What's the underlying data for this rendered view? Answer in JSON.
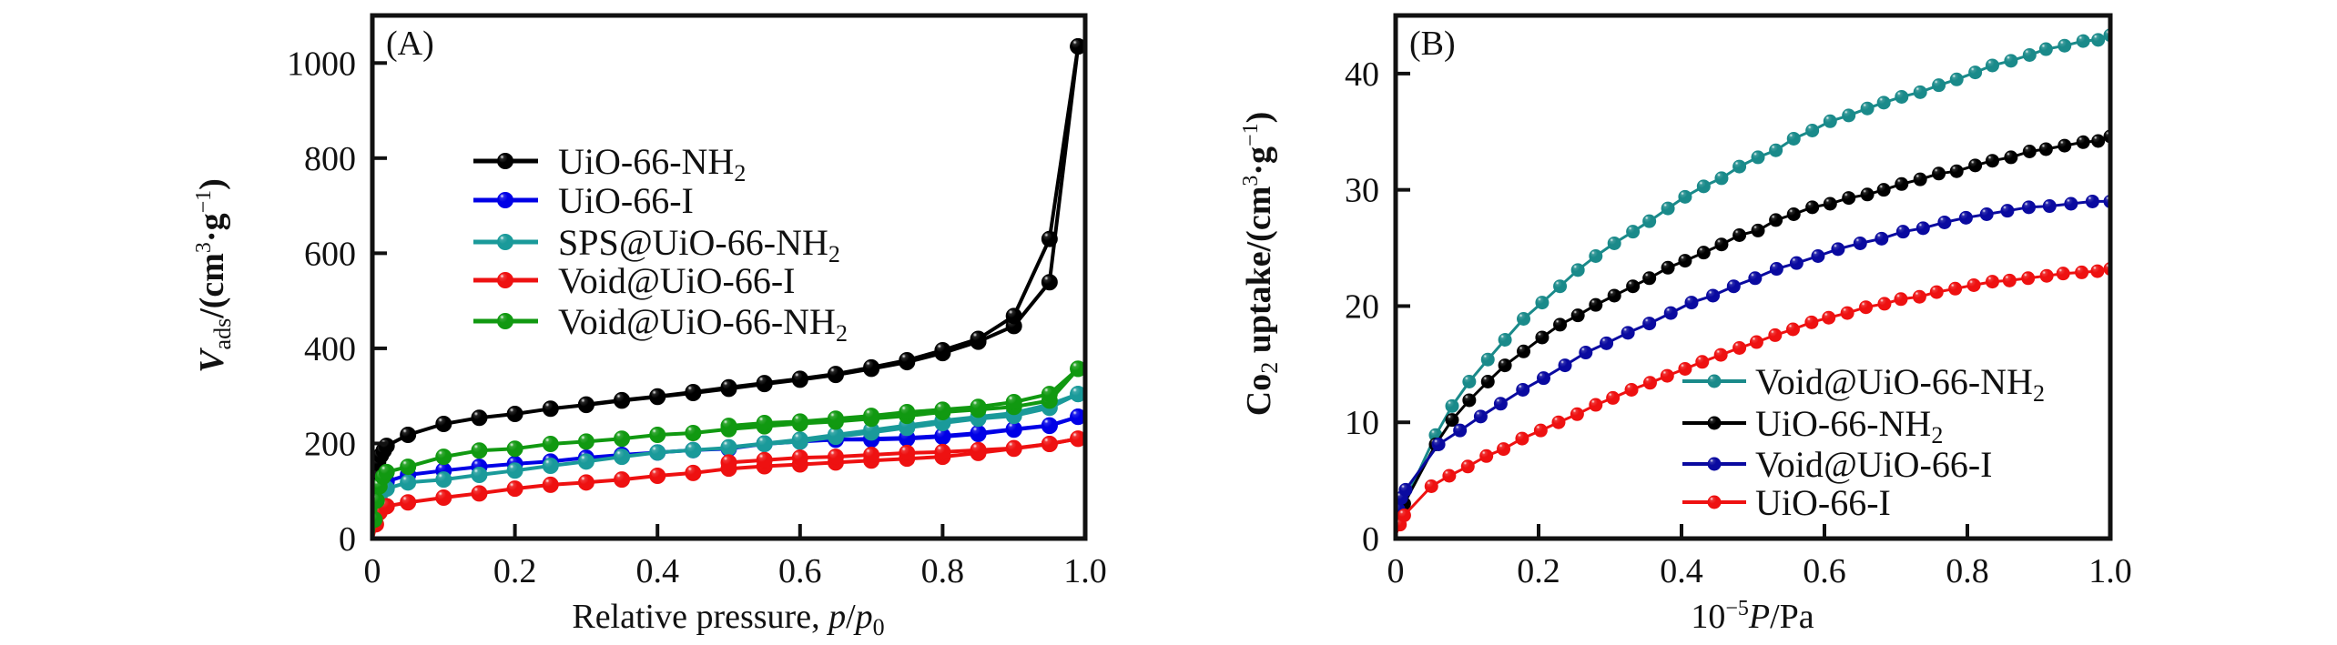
{
  "chart_data": [
    {
      "type": "line",
      "panel_label": "(A)",
      "title": "",
      "xlabel": "Relative pressure, p/p0",
      "xlabel_parts": {
        "main": "Relative pressure, ",
        "italic": "p",
        "slash": "/",
        "italic2": "p",
        "sub": "0"
      },
      "ylabel": "Vads/(cm3·g-1)",
      "ylabel_parts": {
        "italic": "V",
        "sub": "ads",
        "main": "/(cm",
        "sup1": "3",
        "dot": "·g",
        "sup2": "−1",
        "close": ")"
      },
      "xlim": [
        0,
        1.0
      ],
      "ylim": [
        0,
        1100
      ],
      "xticks": [
        0,
        0.2,
        0.4,
        0.6,
        0.8,
        1.0
      ],
      "xtick_labels": [
        "0",
        "0.2",
        "0.4",
        "0.6",
        "0.8",
        "1.0"
      ],
      "yticks": [
        0,
        200,
        400,
        600,
        800,
        1000
      ],
      "ytick_labels": [
        "0",
        "200",
        "400",
        "600",
        "800",
        "1000"
      ],
      "grid": false,
      "legend_position": "center-left",
      "legend": [
        {
          "label": "UiO-66-NH",
          "sub": "2",
          "color": "#000000"
        },
        {
          "label": "UiO-66-I",
          "sub": "",
          "color": "#0000e6"
        },
        {
          "label": "SPS@UiO-66-NH",
          "sub": "2",
          "color": "#1a9a9a"
        },
        {
          "label": "Void@UiO-66-I",
          "sub": "",
          "color": "#ee1111"
        },
        {
          "label": "Void@UiO-66-NH",
          "sub": "2",
          "color": "#119911"
        }
      ],
      "series": [
        {
          "name": "UiO-66-NH2",
          "color": "#000000",
          "adsorption": {
            "x": [
              0.0,
              0.005,
              0.008,
              0.012,
              0.016,
              0.02,
              0.05,
              0.1,
              0.15,
              0.2,
              0.25,
              0.3,
              0.35,
              0.4,
              0.45,
              0.5,
              0.55,
              0.6,
              0.65,
              0.7,
              0.75,
              0.8,
              0.85,
              0.9,
              0.95,
              0.99
            ],
            "y": [
              0,
              130,
              160,
              175,
              185,
              195,
              218,
              241,
              254,
              262,
              273,
              281,
              290,
              298,
              306,
              315,
              325,
              334,
              344,
              357,
              371,
              390,
              414,
              447,
              539,
              1035
            ]
          },
          "desorption": {
            "x": [
              0.99,
              0.95,
              0.9,
              0.85,
              0.8,
              0.75,
              0.7,
              0.65,
              0.6,
              0.55,
              0.5,
              0.45,
              0.4,
              0.35,
              0.3
            ],
            "y": [
              1035,
              630,
              468,
              420,
              396,
              375,
              360,
              346,
              336,
              327,
              318,
              308,
              299,
              291,
              282
            ]
          }
        },
        {
          "name": "UiO-66-I",
          "color": "#0000e6",
          "adsorption": {
            "x": [
              0.0,
              0.005,
              0.01,
              0.02,
              0.05,
              0.1,
              0.15,
              0.2,
              0.25,
              0.3,
              0.35,
              0.4,
              0.45,
              0.5,
              0.55,
              0.6,
              0.65,
              0.7,
              0.75,
              0.8,
              0.85,
              0.9,
              0.95,
              0.99
            ],
            "y": [
              0,
              60,
              100,
              120,
              134,
              143,
              151,
              157,
              162,
              170,
              176,
              181,
              186,
              189,
              199,
              204,
              208,
              208,
              210,
              214,
              220,
              229,
              237,
              256
            ]
          },
          "desorption": {
            "x": [
              0.99,
              0.95,
              0.9,
              0.85,
              0.8,
              0.75,
              0.7,
              0.65,
              0.6,
              0.55,
              0.5
            ],
            "y": [
              256,
              238,
              230,
              222,
              216,
              212,
              210,
              208,
              205,
              200,
              190
            ]
          }
        },
        {
          "name": "SPS@UiO-66-NH2",
          "color": "#1a9a9a",
          "adsorption": {
            "x": [
              0.0,
              0.005,
              0.01,
              0.02,
              0.05,
              0.1,
              0.15,
              0.2,
              0.25,
              0.3,
              0.35,
              0.4,
              0.45,
              0.5,
              0.55,
              0.6,
              0.65,
              0.7,
              0.75,
              0.8,
              0.85,
              0.9,
              0.95,
              0.99
            ],
            "y": [
              0,
              50,
              85,
              105,
              118,
              124,
              134,
              143,
              153,
              162,
              172,
              181,
              186,
              191,
              199,
              204,
              214,
              223,
              233,
              243,
              252,
              258,
              275,
              304
            ]
          },
          "desorption": {
            "x": [
              0.99,
              0.95,
              0.9,
              0.85,
              0.8,
              0.75,
              0.7,
              0.65,
              0.6,
              0.55,
              0.5
            ],
            "y": [
              304,
              282,
              264,
              256,
              248,
              238,
              228,
              218,
              208,
              200,
              192
            ]
          }
        },
        {
          "name": "Void@UiO-66-I",
          "color": "#ee1111",
          "adsorption": {
            "x": [
              0.0,
              0.005,
              0.01,
              0.02,
              0.05,
              0.1,
              0.15,
              0.2,
              0.25,
              0.3,
              0.35,
              0.4,
              0.45,
              0.5,
              0.55,
              0.6,
              0.65,
              0.7,
              0.75,
              0.8,
              0.85,
              0.9,
              0.95,
              0.99
            ],
            "y": [
              0,
              30,
              55,
              68,
              76,
              86,
              95,
              105,
              113,
              118,
              124,
              132,
              138,
              147,
              152,
              156,
              160,
              164,
              168,
              172,
              180,
              189,
              199,
              210
            ]
          },
          "desorption": {
            "x": [
              0.99,
              0.95,
              0.9,
              0.85,
              0.8,
              0.75,
              0.7,
              0.65,
              0.6,
              0.55,
              0.5
            ],
            "y": [
              210,
              199,
              190,
              186,
              182,
              180,
              176,
              172,
              170,
              165,
              160
            ]
          }
        },
        {
          "name": "Void@UiO-66-NH2",
          "color": "#119911",
          "adsorption": {
            "x": [
              0.0,
              0.003,
              0.006,
              0.01,
              0.015,
              0.02,
              0.05,
              0.1,
              0.15,
              0.2,
              0.25,
              0.3,
              0.35,
              0.4,
              0.45,
              0.5,
              0.55,
              0.6,
              0.65,
              0.7,
              0.75,
              0.8,
              0.85,
              0.9,
              0.95,
              0.99
            ],
            "y": [
              0,
              40,
              80,
              110,
              130,
              140,
              151,
              172,
              185,
              189,
              199,
              204,
              210,
              218,
              222,
              230,
              236,
              242,
              246,
              252,
              258,
              266,
              271,
              277,
              290,
              357
            ]
          },
          "desorption": {
            "x": [
              0.99,
              0.95,
              0.9,
              0.85,
              0.8,
              0.75,
              0.7,
              0.65,
              0.6,
              0.55,
              0.5
            ],
            "y": [
              357,
              304,
              287,
              277,
              271,
              266,
              258,
              252,
              246,
              243,
              237
            ]
          }
        }
      ]
    },
    {
      "type": "line",
      "panel_label": "(B)",
      "title": "",
      "xlabel": "10^-5 P/Pa",
      "xlabel_parts": {
        "main": "10",
        "sup": "−5",
        "italic": "P",
        "rest": "/Pa"
      },
      "ylabel": "Co2 uptake/(cm3·g-1)",
      "ylabel_parts": {
        "main": "Co",
        "sub": "2",
        "rest": " uptake/(cm",
        "sup1": "3",
        "dot": "·g",
        "sup2": "−1",
        "close": ")"
      },
      "xlim": [
        0,
        1.0
      ],
      "ylim": [
        0,
        45
      ],
      "xticks": [
        0,
        0.2,
        0.4,
        0.6,
        0.8,
        1.0
      ],
      "xtick_labels": [
        "0",
        "0.2",
        "0.4",
        "0.6",
        "0.8",
        "1.0"
      ],
      "yticks": [
        0,
        10,
        20,
        30,
        40
      ],
      "ytick_labels": [
        "0",
        "10",
        "20",
        "30",
        "40"
      ],
      "grid": false,
      "legend_position": "bottom-right",
      "legend": [
        {
          "label": "Void@UiO-66-NH",
          "sub": "2",
          "color": "#1a8a8a"
        },
        {
          "label": "UiO-66-NH",
          "sub": "2",
          "color": "#000000"
        },
        {
          "label": "Void@UiO-66-I",
          "sub": "",
          "color": "#0a0aa0"
        },
        {
          "label": "UiO-66-I",
          "sub": "",
          "color": "#ee1111"
        }
      ],
      "series": [
        {
          "name": "Void@UiO-66-NH2",
          "color": "#1a8a8a",
          "x": [
            0.0,
            0.005,
            0.01,
            0.056,
            0.079,
            0.103,
            0.129,
            0.153,
            0.179,
            0.205,
            0.23,
            0.255,
            0.28,
            0.306,
            0.332,
            0.355,
            0.381,
            0.405,
            0.431,
            0.456,
            0.481,
            0.507,
            0.532,
            0.557,
            0.583,
            0.608,
            0.634,
            0.66,
            0.683,
            0.708,
            0.734,
            0.76,
            0.785,
            0.811,
            0.835,
            0.861,
            0.887,
            0.91,
            0.936,
            0.962,
            0.983,
            1.0
          ],
          "y": [
            0.5,
            1.8,
            2.8,
            8.9,
            11.4,
            13.5,
            15.4,
            17.1,
            18.9,
            20.3,
            21.7,
            23.1,
            24.3,
            25.4,
            26.4,
            27.3,
            28.4,
            29.4,
            30.3,
            31.0,
            32.0,
            32.8,
            33.4,
            34.4,
            35.1,
            35.9,
            36.4,
            37.0,
            37.5,
            38.0,
            38.4,
            39.0,
            39.5,
            40.1,
            40.7,
            41.1,
            41.6,
            42.1,
            42.4,
            42.8,
            42.9,
            43.3
          ]
        },
        {
          "name": "UiO-66-NH2",
          "color": "#000000",
          "x": [
            0.0,
            0.004,
            0.008,
            0.012,
            0.056,
            0.079,
            0.103,
            0.129,
            0.153,
            0.179,
            0.205,
            0.23,
            0.255,
            0.28,
            0.306,
            0.332,
            0.355,
            0.381,
            0.405,
            0.431,
            0.456,
            0.481,
            0.507,
            0.532,
            0.557,
            0.583,
            0.608,
            0.634,
            0.66,
            0.683,
            0.708,
            0.734,
            0.76,
            0.785,
            0.811,
            0.835,
            0.861,
            0.887,
            0.91,
            0.936,
            0.962,
            0.983,
            1.0
          ],
          "y": [
            0.5,
            1.5,
            2.3,
            3.0,
            8.1,
            10.2,
            11.9,
            13.5,
            14.9,
            16.1,
            17.3,
            18.4,
            19.2,
            20.1,
            20.9,
            21.7,
            22.4,
            23.3,
            23.9,
            24.6,
            25.3,
            26.1,
            26.5,
            27.4,
            27.9,
            28.5,
            28.8,
            29.3,
            29.6,
            30.0,
            30.5,
            30.9,
            31.4,
            31.6,
            32.1,
            32.5,
            32.8,
            33.3,
            33.5,
            33.8,
            34.1,
            34.2,
            34.6
          ]
        },
        {
          "name": "Void@UiO-66-I",
          "color": "#0a0aa0",
          "x": [
            0.0,
            0.004,
            0.008,
            0.014,
            0.06,
            0.09,
            0.119,
            0.147,
            0.178,
            0.207,
            0.237,
            0.266,
            0.295,
            0.325,
            0.355,
            0.385,
            0.414,
            0.444,
            0.473,
            0.503,
            0.533,
            0.561,
            0.591,
            0.619,
            0.65,
            0.68,
            0.71,
            0.738,
            0.768,
            0.798,
            0.827,
            0.856,
            0.886,
            0.915,
            0.945,
            0.975,
            1.0
          ],
          "y": [
            0.5,
            2.5,
            3.5,
            4.2,
            8.1,
            9.3,
            10.5,
            11.6,
            12.8,
            13.8,
            14.9,
            16.0,
            16.8,
            17.7,
            18.5,
            19.4,
            20.3,
            20.9,
            21.7,
            22.4,
            23.2,
            23.7,
            24.3,
            24.9,
            25.4,
            25.8,
            26.4,
            26.7,
            27.2,
            27.6,
            27.9,
            28.2,
            28.5,
            28.6,
            28.8,
            29.0,
            29.0
          ]
        },
        {
          "name": "UiO-66-I",
          "color": "#ee1111",
          "x": [
            0.0,
            0.006,
            0.012,
            0.05,
            0.075,
            0.101,
            0.127,
            0.151,
            0.177,
            0.203,
            0.228,
            0.254,
            0.28,
            0.304,
            0.33,
            0.356,
            0.38,
            0.405,
            0.429,
            0.455,
            0.481,
            0.505,
            0.531,
            0.556,
            0.582,
            0.606,
            0.632,
            0.658,
            0.684,
            0.707,
            0.733,
            0.757,
            0.783,
            0.809,
            0.835,
            0.859,
            0.885,
            0.911,
            0.934,
            0.96,
            0.982,
            1.0
          ],
          "y": [
            0.3,
            1.2,
            2.0,
            4.5,
            5.4,
            6.2,
            7.1,
            7.7,
            8.6,
            9.3,
            10.0,
            10.7,
            11.5,
            12.1,
            12.8,
            13.4,
            14.0,
            14.6,
            15.2,
            15.8,
            16.4,
            16.9,
            17.5,
            18.0,
            18.6,
            19.0,
            19.4,
            19.9,
            20.2,
            20.6,
            20.8,
            21.2,
            21.5,
            21.8,
            22.1,
            22.2,
            22.4,
            22.6,
            22.8,
            22.9,
            23.0,
            23.2
          ]
        }
      ]
    }
  ]
}
